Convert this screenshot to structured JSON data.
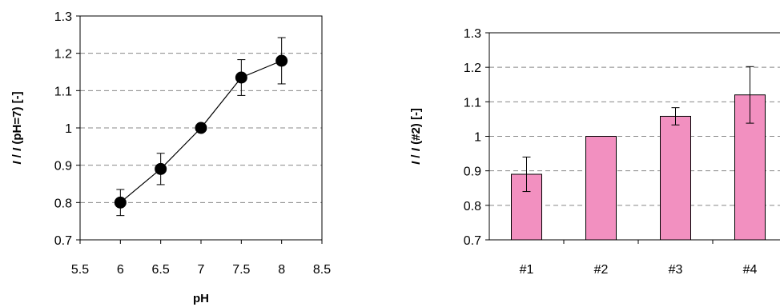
{
  "chart_data": [
    {
      "type": "line",
      "xlabel": "pH",
      "ylabel_italic": "I",
      "ylabel_sep": " / ",
      "ylabel_italic2": "I",
      "ylabel_rest": " (pH=7)  [-]",
      "xlim": [
        5.5,
        8.5
      ],
      "ylim": [
        0.7,
        1.3
      ],
      "xticks": [
        "5.5",
        "6",
        "6.5",
        "7",
        "7.5",
        "8",
        "8.5"
      ],
      "yticks": [
        "0.7",
        "0.8",
        "0.9",
        "1",
        "1.1",
        "1.2",
        "1.3"
      ],
      "grid": "horizontal dashed",
      "marker_color": "#000000",
      "x": [
        6,
        6.5,
        7,
        7.5,
        8
      ],
      "y": [
        0.8,
        0.89,
        1.0,
        1.135,
        1.18
      ],
      "err": [
        0.035,
        0.042,
        0.0,
        0.048,
        0.062
      ]
    },
    {
      "type": "bar",
      "xlabel": "",
      "ylabel_italic": "I",
      "ylabel_sep": " / ",
      "ylabel_italic2": "I",
      "ylabel_rest": " (#2)  [-]",
      "categories": [
        "#1",
        "#2",
        "#3",
        "#4"
      ],
      "values": [
        0.89,
        1.0,
        1.058,
        1.12
      ],
      "err": [
        0.05,
        0.0,
        0.025,
        0.082
      ],
      "ylim": [
        0.7,
        1.3
      ],
      "yticks": [
        "0.7",
        "0.8",
        "0.9",
        "1",
        "1.1",
        "1.2",
        "1.3"
      ],
      "grid": "horizontal dashed",
      "bar_color": "#f290c0"
    }
  ]
}
